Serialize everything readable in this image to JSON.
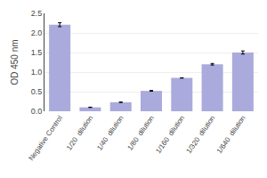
{
  "chart_data": {
    "type": "bar",
    "categories": [
      "Negative Control",
      "1/20  dilution",
      "1/40  dilution",
      "1/80  dilution",
      "1/160  dilution",
      "1/320  dilution",
      "1/640  dilution"
    ],
    "values": [
      2.21,
      0.1,
      0.23,
      0.52,
      0.85,
      1.2,
      1.5
    ],
    "errors": [
      0.05,
      0.005,
      0.005,
      0.01,
      0.005,
      0.02,
      0.04
    ],
    "color": "#aaaadd",
    "ylabel": "OD 450 nm",
    "ylim": [
      0,
      2.5
    ],
    "yticks": [
      {
        "value": 0,
        "label": "0.0"
      },
      0.5,
      {
        "value": 1,
        "label": "1.0"
      },
      1.5,
      {
        "value": 2,
        "label": "2.0"
      },
      2.5
    ],
    "grid": true
  }
}
